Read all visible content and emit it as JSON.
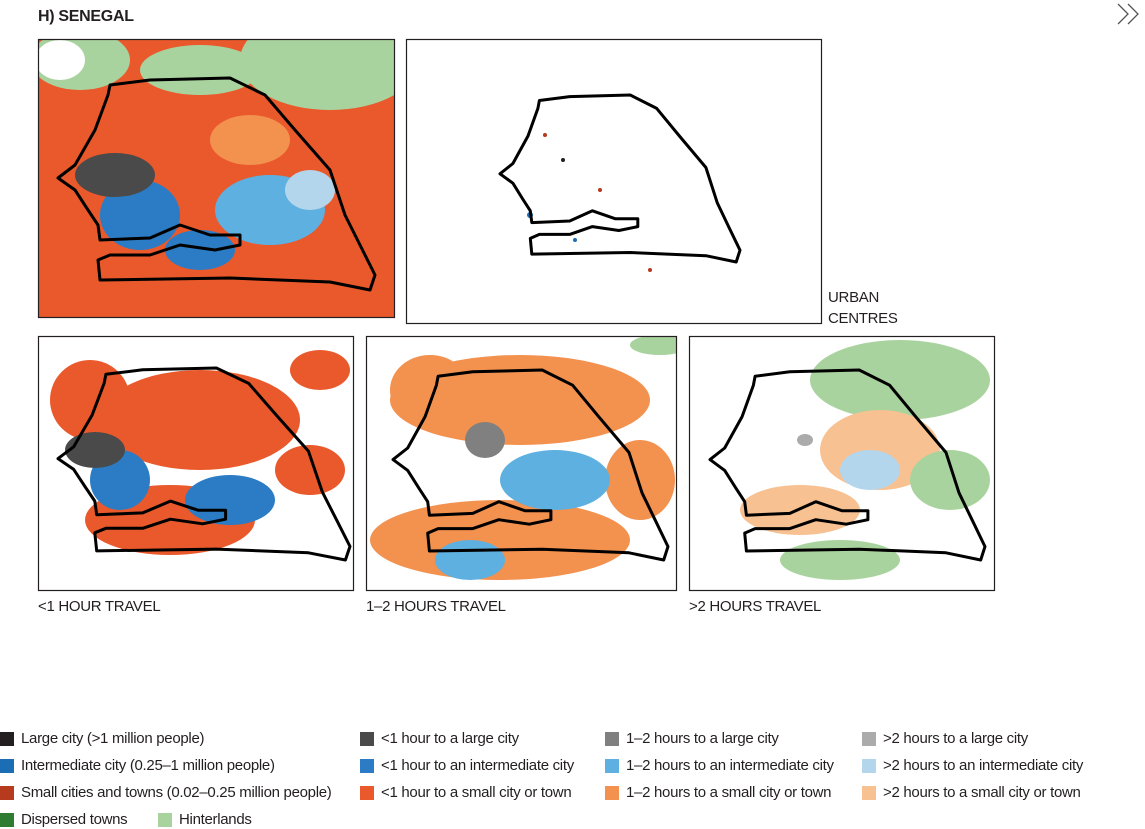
{
  "title": "H) SENEGAL",
  "captions": [
    "URBAN CENTRES",
    "<1 HOUR TRAVEL",
    "1–2 HOURS TRAVEL",
    ">2 HOURS TRAVEL"
  ],
  "legend": [
    {
      "label": "Large city (>1 million people)",
      "color": "#231f20"
    },
    {
      "label": "Intermediate city (0.25–1 million people)",
      "color": "#1b6db4"
    },
    {
      "label": "Small cities and towns (0.02–0.25 million people)",
      "color": "#b53a1e"
    },
    {
      "label": "Dispersed towns",
      "color": "#2e7d32"
    },
    {
      "label": "Hinterlands",
      "color": "#a9d39e"
    },
    {
      "label": "<1 hour to a large city",
      "color": "#4a4a4a"
    },
    {
      "label": "<1 hour to an intermediate city",
      "color": "#2b7cc4"
    },
    {
      "label": "<1 hour to a small city or town",
      "color": "#e9592b"
    },
    {
      "label": "1–2 hours to a large city",
      "color": "#808080"
    },
    {
      "label": "1–2 hours to an intermediate city",
      "color": "#5eb0e0"
    },
    {
      "label": "1–2 hours to a small city or town",
      "color": "#f3914f"
    },
    {
      "label": ">2 hours to a large city",
      "color": "#ababab"
    },
    {
      "label": ">2 hours to an intermediate city",
      "color": "#b4d6ec"
    },
    {
      "label": ">2 hours to a small city or town",
      "color": "#f8c192"
    }
  ]
}
